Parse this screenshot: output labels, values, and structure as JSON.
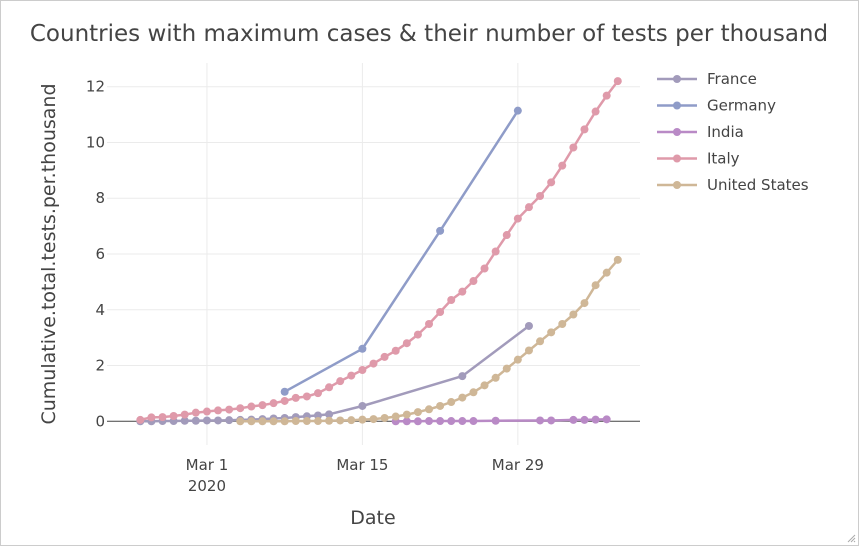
{
  "chart_data": {
    "type": "line",
    "title": "Countries with maximum cases & their number of tests per thousand",
    "xlabel": "Date",
    "ylabel": "Cumulative.total.tests.per.thousand",
    "x_ticks": [
      {
        "date": "2020-03-01",
        "label": "Mar 1",
        "sublabel": "2020"
      },
      {
        "date": "2020-03-15",
        "label": "Mar 15",
        "sublabel": ""
      },
      {
        "date": "2020-03-29",
        "label": "Mar 29",
        "sublabel": ""
      }
    ],
    "y_ticks": [
      0,
      2,
      4,
      6,
      8,
      10,
      12
    ],
    "xlim": [
      "2020-02-21",
      "2020-04-09"
    ],
    "ylim": [
      -0.85,
      12.85
    ],
    "grid": true,
    "legend_position": "right",
    "series": [
      {
        "name": "France",
        "color": "#a29bbb",
        "points": [
          [
            "2020-02-24",
            0.0
          ],
          [
            "2020-02-25",
            0.0
          ],
          [
            "2020-02-26",
            0.01
          ],
          [
            "2020-02-27",
            0.01
          ],
          [
            "2020-02-28",
            0.02
          ],
          [
            "2020-02-29",
            0.02
          ],
          [
            "2020-03-01",
            0.03
          ],
          [
            "2020-03-02",
            0.03
          ],
          [
            "2020-03-03",
            0.04
          ],
          [
            "2020-03-04",
            0.05
          ],
          [
            "2020-03-05",
            0.06
          ],
          [
            "2020-03-06",
            0.08
          ],
          [
            "2020-03-07",
            0.1
          ],
          [
            "2020-03-08",
            0.12
          ],
          [
            "2020-03-09",
            0.15
          ],
          [
            "2020-03-10",
            0.18
          ],
          [
            "2020-03-11",
            0.21
          ],
          [
            "2020-03-12",
            0.25
          ],
          [
            "2020-03-15",
            0.55
          ],
          [
            "2020-03-24",
            1.62
          ],
          [
            "2020-03-30",
            3.42
          ]
        ]
      },
      {
        "name": "Germany",
        "color": "#8f9cc8",
        "points": [
          [
            "2020-03-08",
            1.06
          ],
          [
            "2020-03-15",
            2.6
          ],
          [
            "2020-03-22",
            6.83
          ],
          [
            "2020-03-29",
            11.14
          ]
        ]
      },
      {
        "name": "India",
        "color": "#b98ac6",
        "points": [
          [
            "2020-03-18",
            0.0
          ],
          [
            "2020-03-19",
            0.0
          ],
          [
            "2020-03-20",
            0.0
          ],
          [
            "2020-03-21",
            0.01
          ],
          [
            "2020-03-22",
            0.01
          ],
          [
            "2020-03-23",
            0.01
          ],
          [
            "2020-03-24",
            0.01
          ],
          [
            "2020-03-25",
            0.01
          ],
          [
            "2020-03-27",
            0.02
          ],
          [
            "2020-03-31",
            0.03
          ],
          [
            "2020-04-01",
            0.03
          ],
          [
            "2020-04-03",
            0.05
          ],
          [
            "2020-04-04",
            0.05
          ],
          [
            "2020-04-05",
            0.06
          ],
          [
            "2020-04-06",
            0.07
          ]
        ]
      },
      {
        "name": "Italy",
        "color": "#df9aaa",
        "points": [
          [
            "2020-02-24",
            0.05
          ],
          [
            "2020-02-25",
            0.14
          ],
          [
            "2020-02-26",
            0.15
          ],
          [
            "2020-02-27",
            0.19
          ],
          [
            "2020-02-28",
            0.24
          ],
          [
            "2020-02-29",
            0.31
          ],
          [
            "2020-03-01",
            0.35
          ],
          [
            "2020-03-02",
            0.39
          ],
          [
            "2020-03-03",
            0.42
          ],
          [
            "2020-03-04",
            0.47
          ],
          [
            "2020-03-05",
            0.53
          ],
          [
            "2020-03-06",
            0.58
          ],
          [
            "2020-03-07",
            0.65
          ],
          [
            "2020-03-08",
            0.73
          ],
          [
            "2020-03-09",
            0.84
          ],
          [
            "2020-03-10",
            0.89
          ],
          [
            "2020-03-11",
            1.01
          ],
          [
            "2020-03-12",
            1.22
          ],
          [
            "2020-03-13",
            1.44
          ],
          [
            "2020-03-14",
            1.64
          ],
          [
            "2020-03-15",
            1.84
          ],
          [
            "2020-03-16",
            2.07
          ],
          [
            "2020-03-17",
            2.31
          ],
          [
            "2020-03-18",
            2.53
          ],
          [
            "2020-03-19",
            2.8
          ],
          [
            "2020-03-20",
            3.11
          ],
          [
            "2020-03-21",
            3.49
          ],
          [
            "2020-03-22",
            3.92
          ],
          [
            "2020-03-23",
            4.35
          ],
          [
            "2020-03-24",
            4.65
          ],
          [
            "2020-03-25",
            5.03
          ],
          [
            "2020-03-26",
            5.48
          ],
          [
            "2020-03-27",
            6.09
          ],
          [
            "2020-03-28",
            6.68
          ],
          [
            "2020-03-29",
            7.27
          ],
          [
            "2020-03-30",
            7.68
          ],
          [
            "2020-03-31",
            8.08
          ],
          [
            "2020-04-01",
            8.57
          ],
          [
            "2020-04-02",
            9.17
          ],
          [
            "2020-04-03",
            9.82
          ],
          [
            "2020-04-04",
            10.47
          ],
          [
            "2020-04-05",
            11.11
          ],
          [
            "2020-04-06",
            11.68
          ],
          [
            "2020-04-07",
            12.2
          ]
        ]
      },
      {
        "name": "United States",
        "color": "#cfb797",
        "points": [
          [
            "2020-03-04",
            0.0
          ],
          [
            "2020-03-05",
            0.0
          ],
          [
            "2020-03-06",
            0.0
          ],
          [
            "2020-03-07",
            0.0
          ],
          [
            "2020-03-08",
            0.0
          ],
          [
            "2020-03-09",
            0.01
          ],
          [
            "2020-03-10",
            0.01
          ],
          [
            "2020-03-11",
            0.01
          ],
          [
            "2020-03-12",
            0.02
          ],
          [
            "2020-03-13",
            0.03
          ],
          [
            "2020-03-14",
            0.04
          ],
          [
            "2020-03-15",
            0.06
          ],
          [
            "2020-03-16",
            0.08
          ],
          [
            "2020-03-17",
            0.12
          ],
          [
            "2020-03-18",
            0.17
          ],
          [
            "2020-03-19",
            0.24
          ],
          [
            "2020-03-20",
            0.33
          ],
          [
            "2020-03-21",
            0.43
          ],
          [
            "2020-03-22",
            0.55
          ],
          [
            "2020-03-23",
            0.69
          ],
          [
            "2020-03-24",
            0.85
          ],
          [
            "2020-03-25",
            1.04
          ],
          [
            "2020-03-26",
            1.29
          ],
          [
            "2020-03-27",
            1.56
          ],
          [
            "2020-03-28",
            1.89
          ],
          [
            "2020-03-29",
            2.21
          ],
          [
            "2020-03-30",
            2.54
          ],
          [
            "2020-03-31",
            2.87
          ],
          [
            "2020-04-01",
            3.19
          ],
          [
            "2020-04-02",
            3.49
          ],
          [
            "2020-04-03",
            3.83
          ],
          [
            "2020-04-04",
            4.24
          ],
          [
            "2020-04-05",
            4.88
          ],
          [
            "2020-04-06",
            5.33
          ],
          [
            "2020-04-07",
            5.79
          ]
        ]
      }
    ]
  }
}
